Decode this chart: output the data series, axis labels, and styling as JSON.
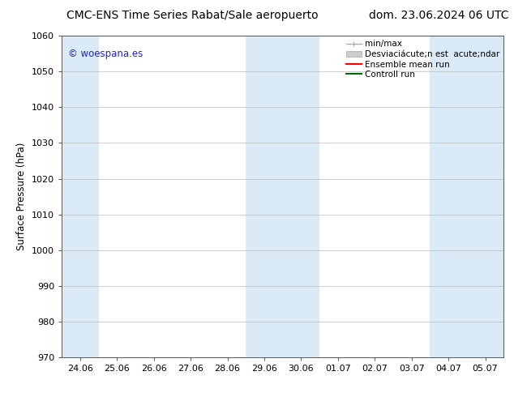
{
  "title_left": "CMC-ENS Time Series Rabat/Sale aeropuerto",
  "title_right": "dom. 23.06.2024 06 UTC",
  "ylabel": "Surface Pressure (hPa)",
  "ylim": [
    970,
    1060
  ],
  "yticks": [
    970,
    980,
    990,
    1000,
    1010,
    1020,
    1030,
    1040,
    1050,
    1060
  ],
  "xtick_labels": [
    "24.06",
    "25.06",
    "26.06",
    "27.06",
    "28.06",
    "29.06",
    "30.06",
    "01.07",
    "02.07",
    "03.07",
    "04.07",
    "05.07"
  ],
  "watermark": "© woespana.es",
  "watermark_color": "#2222cc",
  "shaded_bands_color": "#daeaf6",
  "shaded_columns": [
    0,
    5,
    6,
    10,
    11
  ],
  "bg_color": "#ffffff",
  "plot_bg_color": "#ffffff",
  "title_fontsize": 10,
  "label_fontsize": 8.5,
  "tick_fontsize": 8,
  "legend_fontsize": 7.5,
  "grid_color": "#bbbbbb",
  "grid_lw": 0.5,
  "spine_color": "#555555",
  "legend_minmax_color": "#aaaaaa",
  "legend_std_color": "#cccccc",
  "legend_ens_color": "#ff0000",
  "legend_ctrl_color": "#006600"
}
